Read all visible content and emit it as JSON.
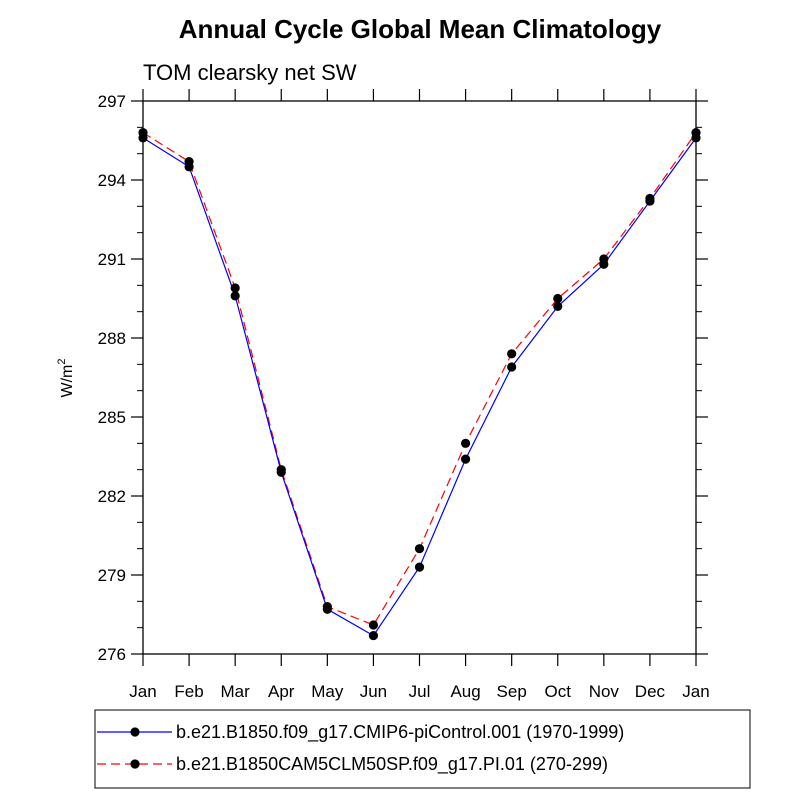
{
  "chart_data": {
    "type": "line",
    "title": "Annual Cycle Global Mean Climatology",
    "subtitle": "TOM clearsky net SW",
    "xlabel": "",
    "ylabel": "W/m",
    "ylabel_sup": "2",
    "ylim": [
      276,
      297
    ],
    "yticks": [
      276,
      279,
      282,
      285,
      288,
      291,
      294,
      297
    ],
    "categories": [
      "Jan",
      "Feb",
      "Mar",
      "Apr",
      "May",
      "Jun",
      "Jul",
      "Aug",
      "Sep",
      "Oct",
      "Nov",
      "Dec",
      "Jan"
    ],
    "grid": false,
    "legend_position": "bottom",
    "series": [
      {
        "name": "b.e21.B1850.f09_g17.CMIP6-piControl.001 (1970-1999)",
        "color": "#0000ff",
        "dash": "solid",
        "values": [
          295.6,
          294.5,
          289.6,
          282.9,
          277.7,
          276.7,
          279.3,
          283.4,
          286.9,
          289.2,
          290.8,
          293.2,
          295.6
        ]
      },
      {
        "name": "b.e21.B1850CAM5CLM50SP.f09_g17.PI.01 (270-299)",
        "color": "#ff0000",
        "dash": "dashed",
        "values": [
          295.8,
          294.7,
          289.9,
          283.0,
          277.8,
          277.1,
          280.0,
          284.0,
          287.4,
          289.5,
          291.0,
          293.3,
          295.8
        ]
      }
    ]
  }
}
